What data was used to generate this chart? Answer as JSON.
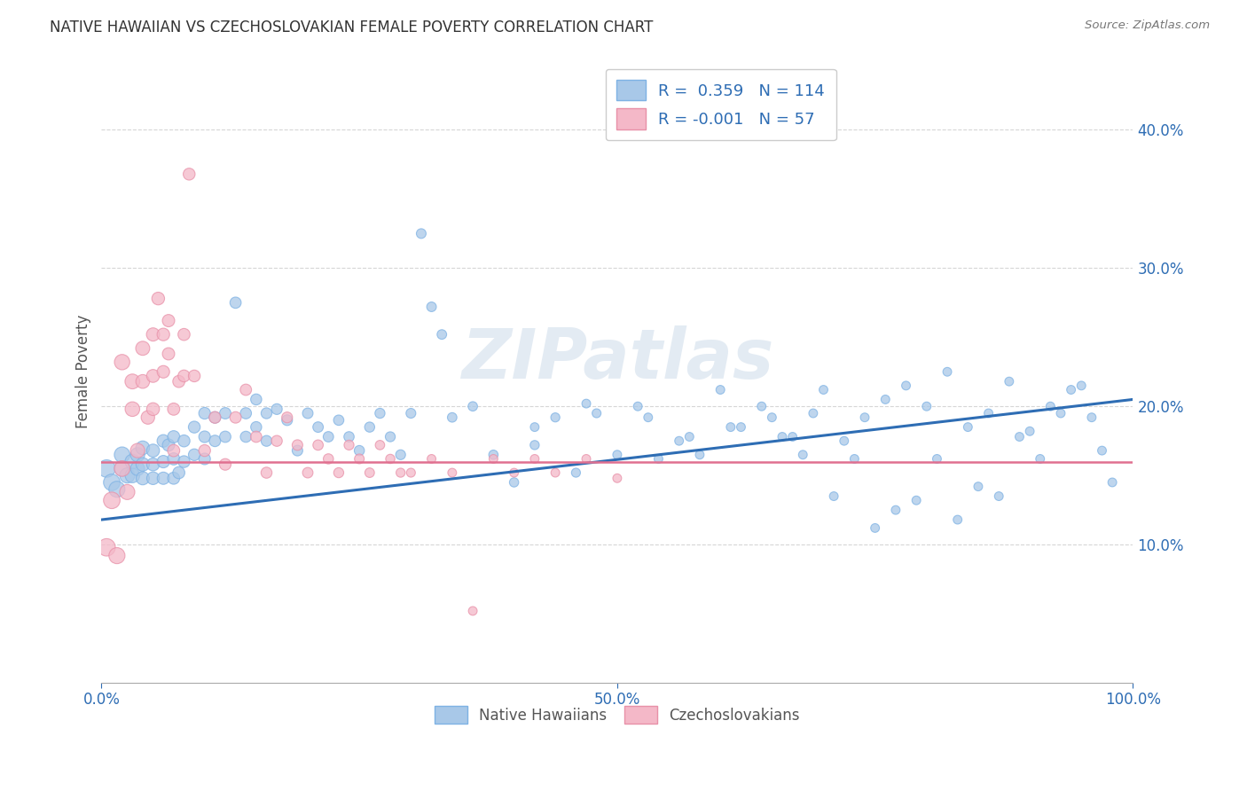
{
  "title": "NATIVE HAWAIIAN VS CZECHOSLOVAKIAN FEMALE POVERTY CORRELATION CHART",
  "source": "Source: ZipAtlas.com",
  "ylabel": "Female Poverty",
  "xlim": [
    0,
    1.0
  ],
  "ylim": [
    0,
    0.45
  ],
  "blue_color": "#A8C8E8",
  "blue_edge_color": "#7EB2E4",
  "pink_color": "#F4B8C8",
  "pink_edge_color": "#E890A8",
  "blue_line_color": "#2E6DB4",
  "pink_line_color": "#E07090",
  "legend_r_blue": "0.359",
  "legend_n_blue": "114",
  "legend_r_pink": "-0.001",
  "legend_n_pink": "57",
  "legend_label_blue": "Native Hawaiians",
  "legend_label_pink": "Czechoslovakians",
  "watermark": "ZIPatlas",
  "blue_scatter_x": [
    0.005,
    0.01,
    0.015,
    0.02,
    0.02,
    0.025,
    0.03,
    0.03,
    0.035,
    0.035,
    0.04,
    0.04,
    0.04,
    0.05,
    0.05,
    0.05,
    0.06,
    0.06,
    0.06,
    0.065,
    0.07,
    0.07,
    0.07,
    0.075,
    0.08,
    0.08,
    0.09,
    0.09,
    0.1,
    0.1,
    0.1,
    0.11,
    0.11,
    0.12,
    0.12,
    0.13,
    0.14,
    0.14,
    0.15,
    0.15,
    0.16,
    0.16,
    0.17,
    0.18,
    0.19,
    0.2,
    0.21,
    0.22,
    0.23,
    0.24,
    0.25,
    0.26,
    0.27,
    0.28,
    0.29,
    0.3,
    0.31,
    0.32,
    0.33,
    0.34,
    0.36,
    0.38,
    0.4,
    0.42,
    0.44,
    0.46,
    0.48,
    0.5,
    0.52,
    0.54,
    0.56,
    0.58,
    0.6,
    0.62,
    0.64,
    0.66,
    0.68,
    0.7,
    0.72,
    0.74,
    0.76,
    0.78,
    0.8,
    0.82,
    0.84,
    0.86,
    0.88,
    0.9,
    0.92,
    0.94,
    0.96,
    0.98,
    0.42,
    0.47,
    0.53,
    0.57,
    0.61,
    0.65,
    0.67,
    0.69,
    0.71,
    0.73,
    0.75,
    0.77,
    0.79,
    0.81,
    0.83,
    0.85,
    0.87,
    0.89,
    0.91,
    0.93,
    0.95,
    0.97
  ],
  "blue_scatter_y": [
    0.155,
    0.145,
    0.14,
    0.165,
    0.155,
    0.15,
    0.16,
    0.15,
    0.165,
    0.155,
    0.17,
    0.158,
    0.148,
    0.168,
    0.158,
    0.148,
    0.175,
    0.16,
    0.148,
    0.172,
    0.178,
    0.162,
    0.148,
    0.152,
    0.175,
    0.16,
    0.185,
    0.165,
    0.195,
    0.178,
    0.162,
    0.192,
    0.175,
    0.195,
    0.178,
    0.275,
    0.195,
    0.178,
    0.205,
    0.185,
    0.195,
    0.175,
    0.198,
    0.19,
    0.168,
    0.195,
    0.185,
    0.178,
    0.19,
    0.178,
    0.168,
    0.185,
    0.195,
    0.178,
    0.165,
    0.195,
    0.325,
    0.272,
    0.252,
    0.192,
    0.2,
    0.165,
    0.145,
    0.172,
    0.192,
    0.152,
    0.195,
    0.165,
    0.2,
    0.162,
    0.175,
    0.165,
    0.212,
    0.185,
    0.2,
    0.178,
    0.165,
    0.212,
    0.175,
    0.192,
    0.205,
    0.215,
    0.2,
    0.225,
    0.185,
    0.195,
    0.218,
    0.182,
    0.2,
    0.212,
    0.192,
    0.145,
    0.185,
    0.202,
    0.192,
    0.178,
    0.185,
    0.192,
    0.178,
    0.195,
    0.135,
    0.162,
    0.112,
    0.125,
    0.132,
    0.162,
    0.118,
    0.142,
    0.135,
    0.178,
    0.162,
    0.195,
    0.215,
    0.168
  ],
  "blue_scatter_size": [
    200,
    180,
    170,
    160,
    155,
    150,
    145,
    140,
    135,
    130,
    125,
    120,
    115,
    110,
    108,
    106,
    104,
    102,
    100,
    99,
    98,
    97,
    96,
    95,
    94,
    93,
    92,
    91,
    90,
    89,
    88,
    87,
    86,
    85,
    84,
    83,
    82,
    81,
    80,
    79,
    78,
    77,
    76,
    75,
    74,
    73,
    72,
    71,
    70,
    69,
    68,
    67,
    66,
    65,
    64,
    63,
    62,
    61,
    60,
    59,
    58,
    57,
    56,
    55,
    54,
    53,
    52,
    51,
    50,
    50,
    50,
    50,
    50,
    50,
    50,
    50,
    50,
    50,
    50,
    50,
    50,
    50,
    50,
    50,
    50,
    50,
    50,
    50,
    50,
    50,
    50,
    50,
    50,
    50,
    50,
    50,
    50,
    50,
    50,
    50,
    50,
    50,
    50,
    50,
    50,
    50,
    50,
    50,
    50,
    50,
    50,
    50,
    50,
    50
  ],
  "pink_scatter_x": [
    0.005,
    0.01,
    0.015,
    0.02,
    0.02,
    0.025,
    0.03,
    0.03,
    0.035,
    0.04,
    0.04,
    0.045,
    0.05,
    0.05,
    0.05,
    0.055,
    0.06,
    0.06,
    0.065,
    0.065,
    0.07,
    0.07,
    0.075,
    0.08,
    0.08,
    0.085,
    0.09,
    0.1,
    0.11,
    0.12,
    0.13,
    0.14,
    0.15,
    0.16,
    0.17,
    0.18,
    0.19,
    0.2,
    0.21,
    0.22,
    0.23,
    0.24,
    0.25,
    0.26,
    0.27,
    0.28,
    0.29,
    0.3,
    0.32,
    0.34,
    0.36,
    0.38,
    0.4,
    0.42,
    0.44,
    0.47,
    0.5
  ],
  "pink_scatter_y": [
    0.098,
    0.132,
    0.092,
    0.155,
    0.232,
    0.138,
    0.218,
    0.198,
    0.168,
    0.242,
    0.218,
    0.192,
    0.252,
    0.222,
    0.198,
    0.278,
    0.252,
    0.225,
    0.262,
    0.238,
    0.198,
    0.168,
    0.218,
    0.252,
    0.222,
    0.368,
    0.222,
    0.168,
    0.192,
    0.158,
    0.192,
    0.212,
    0.178,
    0.152,
    0.175,
    0.192,
    0.172,
    0.152,
    0.172,
    0.162,
    0.152,
    0.172,
    0.162,
    0.152,
    0.172,
    0.162,
    0.152,
    0.152,
    0.162,
    0.152,
    0.052,
    0.162,
    0.152,
    0.162,
    0.152,
    0.162,
    0.148
  ],
  "pink_scatter_size": [
    200,
    180,
    170,
    160,
    155,
    150,
    145,
    140,
    135,
    130,
    125,
    120,
    115,
    110,
    108,
    106,
    104,
    102,
    100,
    99,
    98,
    97,
    96,
    95,
    94,
    93,
    92,
    91,
    90,
    88,
    86,
    84,
    82,
    80,
    78,
    76,
    74,
    72,
    70,
    68,
    66,
    64,
    62,
    60,
    58,
    56,
    54,
    52,
    50,
    50,
    50,
    50,
    50,
    50,
    50,
    50,
    50
  ],
  "blue_trend_x": [
    0.0,
    1.0
  ],
  "blue_trend_y_start": 0.118,
  "blue_trend_y_end": 0.205,
  "pink_trend_y": 0.16,
  "bg_color": "#FFFFFF",
  "grid_color": "#CCCCCC",
  "axis_tick_color": "#2E6DB4"
}
